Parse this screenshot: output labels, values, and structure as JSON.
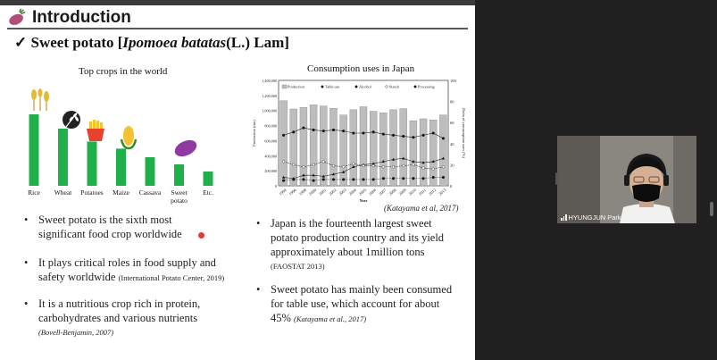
{
  "slide": {
    "title": "Introduction",
    "subtitle_pre": "Sweet potato [",
    "subtitle_italic": "Ipomoea batatas",
    "subtitle_post": "(L.) Lam]",
    "check": "✓"
  },
  "chart_data": [
    {
      "type": "bar",
      "title": "Top crops in the world",
      "categories": [
        "Rice",
        "Wheat",
        "Potatoes",
        "Maize",
        "Cassava",
        "Sweet potato",
        "Etc."
      ],
      "values": [
        100,
        80,
        62,
        52,
        40,
        30,
        20
      ],
      "color": "#20b04a"
    },
    {
      "type": "bar",
      "title": "Consumption uses in Japan",
      "xlabel": "Year",
      "ylabel": "Production (ton)",
      "ylabel_right": "Ratio of consumption uses (%)",
      "categories": [
        "1994",
        "1996",
        "1998",
        "2000",
        "2001",
        "2002",
        "2003",
        "2004",
        "2005",
        "2006",
        "2007",
        "2008",
        "2009",
        "2010",
        "2011",
        "2012",
        "2013"
      ],
      "y_ticks": [
        "0",
        "200,000",
        "400,000",
        "600,000",
        "800,000",
        "1,000,000",
        "1,200,000",
        "1,400,000"
      ],
      "y2_ticks": [
        "0",
        "20",
        "40",
        "60",
        "80",
        "100"
      ],
      "ylim": [
        0,
        1400000
      ],
      "y2lim": [
        0,
        100
      ],
      "legend": [
        "Production",
        "Table use",
        "Alcohol",
        "Starch",
        "Processing"
      ],
      "series": [
        {
          "name": "Production",
          "kind": "bar",
          "values": [
            1130000,
            1020000,
            1040000,
            1075000,
            1060000,
            1030000,
            940000,
            1010000,
            1050000,
            990000,
            970000,
            1010000,
            1025000,
            865000,
            890000,
            875000,
            940000
          ]
        },
        {
          "name": "Table use",
          "kind": "line",
          "values": [
            48,
            51,
            55,
            53,
            52,
            53,
            52,
            50,
            50,
            51,
            49,
            48,
            47,
            46,
            48,
            50,
            45
          ]
        },
        {
          "name": "Alcohol",
          "kind": "line",
          "values": [
            8,
            7,
            10,
            10,
            9,
            11,
            13,
            18,
            20,
            21,
            23,
            25,
            26,
            23,
            22,
            23,
            26
          ]
        },
        {
          "name": "Starch",
          "kind": "line",
          "values": [
            23,
            20,
            18,
            20,
            23,
            19,
            18,
            21,
            19,
            19,
            18,
            18,
            19,
            20,
            17,
            16,
            18
          ]
        },
        {
          "name": "Processing",
          "kind": "line",
          "values": [
            5,
            6,
            6,
            5,
            6,
            6,
            6,
            6,
            6,
            6,
            7,
            7,
            7,
            7,
            7,
            8,
            8
          ]
        }
      ]
    }
  ],
  "citation_right": "(Katayama et al, 2017)",
  "bullets_left": [
    {
      "text_lines": [
        "Sweet potato is the sixth most",
        "significant food crop worldwide"
      ],
      "ref": ""
    },
    {
      "text_lines": [
        "It plays critical roles in food supply and",
        "safety worldwide"
      ],
      "ref": "(International Potato Center, 2019)"
    },
    {
      "text_lines": [
        "It is a nutritious crop rich in protein,",
        "carbohydrates and various nutrients"
      ],
      "ref": "(Bovell-Benjamin, 2007)"
    }
  ],
  "bullets_right": [
    {
      "text_lines": [
        "Japan is the fourteenth largest sweet",
        "potato production country and its yield",
        "approximately about 1million tons"
      ],
      "ref": "(FAOSTAT 2013)"
    },
    {
      "text_lines": [
        "Sweet potato has mainly been consumed",
        "for table use, which account for about",
        "45%"
      ],
      "ref": "(Katayama et al., 2017)"
    }
  ],
  "bullet_glyph": "•",
  "participant": {
    "name": "HYUNGJUN Park",
    "icon": "signal-bars-icon"
  },
  "colors": {
    "bar_green": "#20b04a",
    "slide_bg": "#ffffff",
    "app_bg": "#1c1c1c",
    "laser_dot": "#e53a3a"
  }
}
